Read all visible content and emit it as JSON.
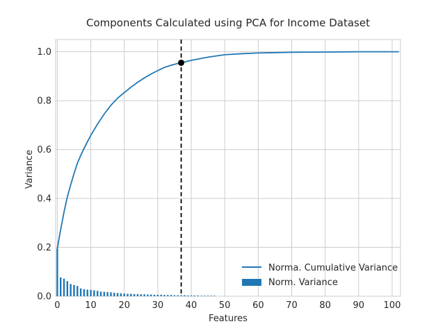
{
  "chart_data": {
    "type": "bar+line",
    "title": "Components Calculated using PCA for Income Dataset",
    "xlabel": "Features",
    "ylabel": "Variance",
    "xlim": [
      -0.5,
      102.5
    ],
    "ylim": [
      0,
      1.05
    ],
    "xticks": [
      0,
      10,
      20,
      30,
      40,
      50,
      60,
      70,
      80,
      90,
      100
    ],
    "yticks": [
      0.0,
      0.2,
      0.4,
      0.6,
      0.8,
      1.0
    ],
    "xtick_labels": [
      "0",
      "10",
      "20",
      "30",
      "40",
      "50",
      "60",
      "70",
      "80",
      "90",
      "100"
    ],
    "ytick_labels": [
      "0.0",
      "0.2",
      "0.4",
      "0.6",
      "0.8",
      "1.0"
    ],
    "grid": true,
    "legend_position": "lower-right",
    "series": [
      {
        "name": "Norm. Variance",
        "kind": "bar",
        "color": "#1f77b4",
        "x": [
          0,
          1,
          2,
          3,
          4,
          5,
          6,
          7,
          8,
          9,
          10,
          11,
          12,
          13,
          14,
          15,
          16,
          17,
          18,
          19,
          20,
          21,
          22,
          23,
          24,
          25,
          26,
          27,
          28,
          29,
          30,
          31,
          32,
          33,
          34,
          35,
          36,
          37,
          38,
          39,
          40,
          41,
          42,
          43,
          44,
          45,
          46,
          47
        ],
        "values": [
          0.195,
          0.077,
          0.072,
          0.062,
          0.05,
          0.046,
          0.042,
          0.032,
          0.029,
          0.027,
          0.026,
          0.024,
          0.022,
          0.019,
          0.018,
          0.017,
          0.016,
          0.014,
          0.013,
          0.012,
          0.011,
          0.01,
          0.01,
          0.009,
          0.009,
          0.008,
          0.008,
          0.007,
          0.007,
          0.006,
          0.006,
          0.006,
          0.005,
          0.005,
          0.005,
          0.004,
          0.004,
          0.004,
          0.004,
          0.003,
          0.003,
          0.003,
          0.003,
          0.002,
          0.002,
          0.002,
          0.002,
          0.002
        ]
      },
      {
        "name": "Norma. Cumulative Variance",
        "kind": "line",
        "color": "#1f77b4",
        "x": [
          0,
          1,
          2,
          3,
          4,
          5,
          6,
          7,
          8,
          9,
          10,
          12,
          14,
          16,
          18,
          20,
          22,
          24,
          26,
          28,
          30,
          32,
          34,
          36,
          37,
          40,
          45,
          50,
          55,
          60,
          70,
          80,
          90,
          102
        ],
        "values": [
          0.195,
          0.272,
          0.344,
          0.406,
          0.456,
          0.502,
          0.544,
          0.576,
          0.605,
          0.632,
          0.658,
          0.704,
          0.745,
          0.781,
          0.81,
          0.833,
          0.855,
          0.875,
          0.893,
          0.909,
          0.923,
          0.936,
          0.945,
          0.952,
          0.955,
          0.965,
          0.978,
          0.988,
          0.992,
          0.995,
          0.998,
          0.999,
          1.0,
          1.0
        ]
      }
    ],
    "cutoff": {
      "x": 37,
      "y": 0.955,
      "line_style": "dashed",
      "line_color": "#000000",
      "marker_color": "#000000"
    }
  }
}
